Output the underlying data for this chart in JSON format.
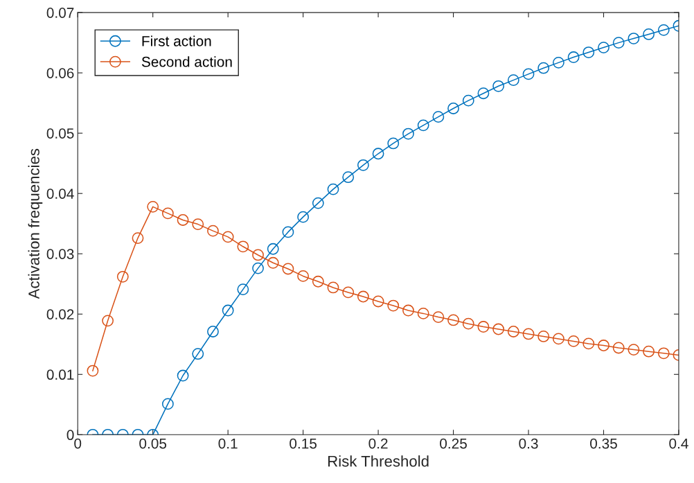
{
  "chart_data": {
    "type": "line",
    "xlabel": "Risk Threshold",
    "ylabel": "Activation frequencies",
    "x": [
      0.01,
      0.02,
      0.03,
      0.04,
      0.05,
      0.06,
      0.07,
      0.08,
      0.09,
      0.1,
      0.11,
      0.12,
      0.13,
      0.14,
      0.15,
      0.16,
      0.17,
      0.18,
      0.19,
      0.2,
      0.21,
      0.22,
      0.23,
      0.24,
      0.25,
      0.26,
      0.27,
      0.28,
      0.29,
      0.3,
      0.31,
      0.32,
      0.33,
      0.34,
      0.35,
      0.36,
      0.37,
      0.38,
      0.39,
      0.4
    ],
    "series": [
      {
        "name": "First action",
        "color": "#0072bd",
        "values": [
          0,
          0,
          0,
          0,
          0,
          0.0051,
          0.0098,
          0.0134,
          0.0171,
          0.0206,
          0.0241,
          0.0276,
          0.0308,
          0.0336,
          0.0361,
          0.0384,
          0.0407,
          0.0427,
          0.0447,
          0.0466,
          0.0483,
          0.0499,
          0.0513,
          0.0527,
          0.0541,
          0.0554,
          0.0566,
          0.0578,
          0.0588,
          0.0598,
          0.0608,
          0.0617,
          0.0626,
          0.0634,
          0.0642,
          0.065,
          0.0657,
          0.0664,
          0.0671,
          0.0678
        ]
      },
      {
        "name": "Second action",
        "color": "#d95319",
        "values": [
          0.0106,
          0.0189,
          0.0262,
          0.0326,
          0.0378,
          0.0367,
          0.0356,
          0.0349,
          0.0338,
          0.0328,
          0.0312,
          0.0298,
          0.0285,
          0.0275,
          0.0263,
          0.0254,
          0.0244,
          0.0236,
          0.0229,
          0.0221,
          0.0214,
          0.0206,
          0.0201,
          0.0195,
          0.019,
          0.0184,
          0.0179,
          0.0175,
          0.0171,
          0.0167,
          0.0163,
          0.0159,
          0.0155,
          0.0151,
          0.0148,
          0.0144,
          0.0141,
          0.0138,
          0.0135,
          0.0132
        ]
      }
    ],
    "xlim": [
      0,
      0.4
    ],
    "xticks": [
      0,
      0.05,
      0.1,
      0.15,
      0.2,
      0.25,
      0.3,
      0.35,
      0.4
    ],
    "ylim": [
      0,
      0.07
    ],
    "yticks": [
      0,
      0.01,
      0.02,
      0.03,
      0.04,
      0.05,
      0.06,
      0.07
    ],
    "grid": false,
    "legend": "top left",
    "marker": "circle",
    "line_style": "solid"
  }
}
